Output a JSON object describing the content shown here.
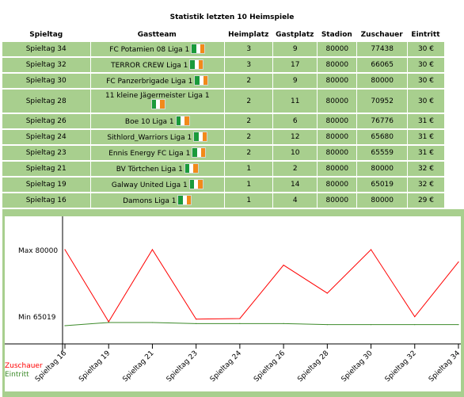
{
  "page": {
    "title": "Statistik letzten 10 Heimspiele"
  },
  "table": {
    "headers": [
      "Spieltag",
      "Gastteam",
      "Heimplatz",
      "Gastplatz",
      "Stadion",
      "Zuschauer",
      "Eintritt"
    ],
    "rows": [
      {
        "spieltag": "Spieltag 34",
        "team": "FC Potamien 08",
        "liga": "Liga 1",
        "heimplatz": "3",
        "gastplatz": "9",
        "stadion": "80000",
        "zuschauer": "77438",
        "eintritt": "30 €"
      },
      {
        "spieltag": "Spieltag 32",
        "team": "TERROR CREW",
        "liga": "Liga 1",
        "heimplatz": "3",
        "gastplatz": "17",
        "stadion": "80000",
        "zuschauer": "66065",
        "eintritt": "30 €"
      },
      {
        "spieltag": "Spieltag 30",
        "team": "FC Panzerbrigade",
        "liga": "Liga 1",
        "heimplatz": "2",
        "gastplatz": "9",
        "stadion": "80000",
        "zuschauer": "80000",
        "eintritt": "30 €"
      },
      {
        "spieltag": "Spieltag 28",
        "team": "11 kleine Jägermeister",
        "liga": "Liga 1",
        "heimplatz": "2",
        "gastplatz": "11",
        "stadion": "80000",
        "zuschauer": "70952",
        "eintritt": "30 €"
      },
      {
        "spieltag": "Spieltag 26",
        "team": "Boe 10",
        "liga": "Liga 1",
        "heimplatz": "2",
        "gastplatz": "6",
        "stadion": "80000",
        "zuschauer": "76776",
        "eintritt": "31 €"
      },
      {
        "spieltag": "Spieltag 24",
        "team": "Sithlord_Warriors",
        "liga": "Liga 1",
        "heimplatz": "2",
        "gastplatz": "12",
        "stadion": "80000",
        "zuschauer": "65680",
        "eintritt": "31 €"
      },
      {
        "spieltag": "Spieltag 23",
        "team": "Ennis Energy FC",
        "liga": "Liga 1",
        "heimplatz": "2",
        "gastplatz": "10",
        "stadion": "80000",
        "zuschauer": "65559",
        "eintritt": "31 €"
      },
      {
        "spieltag": "Spieltag 21",
        "team": "BV Törtchen",
        "liga": "Liga 1",
        "heimplatz": "1",
        "gastplatz": "2",
        "stadion": "80000",
        "zuschauer": "80000",
        "eintritt": "32 €"
      },
      {
        "spieltag": "Spieltag 19",
        "team": "Galway United",
        "liga": "Liga 1",
        "heimplatz": "1",
        "gastplatz": "14",
        "stadion": "80000",
        "zuschauer": "65019",
        "eintritt": "32 €"
      },
      {
        "spieltag": "Spieltag 16",
        "team": "Damons",
        "liga": "Liga 1",
        "heimplatz": "1",
        "gastplatz": "4",
        "stadion": "80000",
        "zuschauer": "80000",
        "eintritt": "29 €"
      }
    ]
  },
  "chart_data": {
    "type": "line",
    "categories": [
      "Spieltag 16",
      "Spieltag 19",
      "Spieltag 21",
      "Spieltag 23",
      "Spieltag 24",
      "Spieltag 26",
      "Spieltag 28",
      "Spieltag 30",
      "Spieltag 32",
      "Spieltag 34"
    ],
    "series": [
      {
        "name": "Zuschauer",
        "color": "#ff0000",
        "values": [
          80000,
          65019,
          80000,
          65559,
          65680,
          76776,
          70952,
          80000,
          66065,
          77438
        ]
      },
      {
        "name": "Eintritt",
        "color": "#3c8a2a",
        "values": [
          29,
          32,
          32,
          31,
          31,
          31,
          30,
          30,
          30,
          30
        ]
      }
    ],
    "ymax_label": "Max 80000",
    "ymin_label": "Min 65019",
    "ylim": [
      65019,
      80000
    ],
    "eintritt_range": [
      29,
      32
    ],
    "grid": true,
    "legend_position": "bottom-left"
  }
}
